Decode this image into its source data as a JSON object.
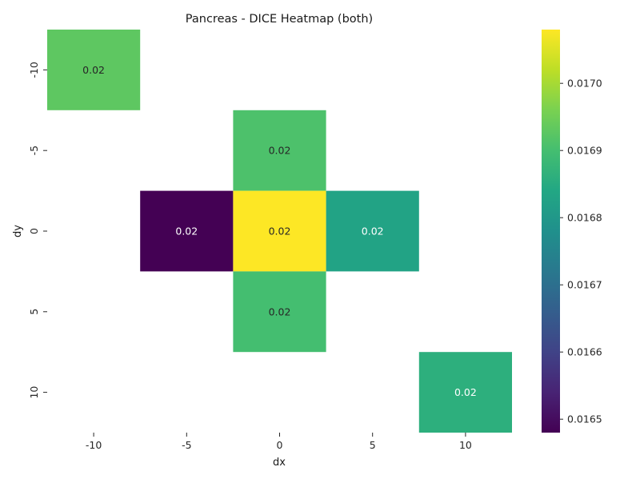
{
  "chart_data": {
    "type": "heatmap",
    "title": "Pancreas - DICE Heatmap (both)",
    "xlabel": "dx",
    "ylabel": "dy",
    "x_categories": [
      "-10",
      "-5",
      "0",
      "5",
      "10"
    ],
    "y_categories": [
      "-10",
      "-5",
      "0",
      "5",
      "10"
    ],
    "cells": [
      {
        "dx": "-10",
        "dy": "-10",
        "value": 0.01693,
        "label": "0.02"
      },
      {
        "dx": "0",
        "dy": "-5",
        "value": 0.01691,
        "label": "0.02"
      },
      {
        "dx": "-5",
        "dy": "0",
        "value": 0.01648,
        "label": "0.02"
      },
      {
        "dx": "0",
        "dy": "0",
        "value": 0.01708,
        "label": "0.02"
      },
      {
        "dx": "5",
        "dy": "0",
        "value": 0.01683,
        "label": "0.02"
      },
      {
        "dx": "0",
        "dy": "5",
        "value": 0.0169,
        "label": "0.02"
      },
      {
        "dx": "10",
        "dy": "10",
        "value": 0.01686,
        "label": "0.02"
      }
    ],
    "colormap": "viridis",
    "vmin": 0.01648,
    "vmax": 0.01708,
    "colorbar_ticks": [
      "0.0165",
      "0.0166",
      "0.0167",
      "0.0168",
      "0.0169",
      "0.0170"
    ],
    "grid": false,
    "colorbar_position": "right"
  }
}
